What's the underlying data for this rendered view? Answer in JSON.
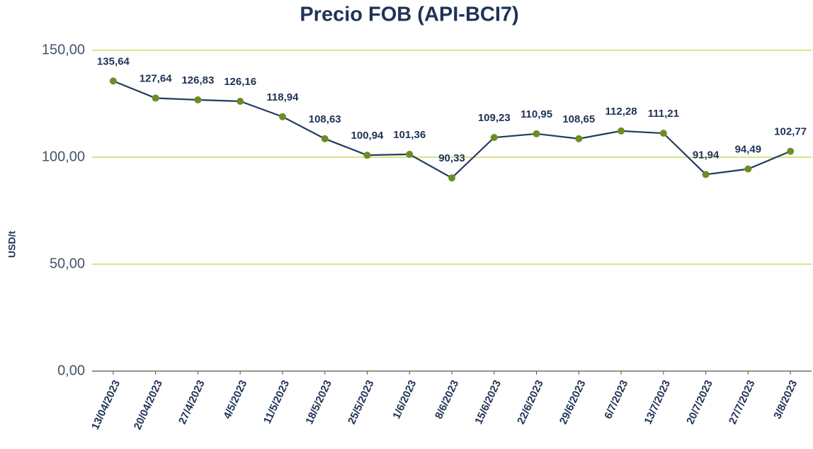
{
  "chart_data": {
    "type": "line",
    "title": "Precio FOB (API-BCI7)",
    "y_label": "USD/t",
    "categories": [
      "13/04/2023",
      "20/04/2023",
      "27/4/2023",
      "4/5/2023",
      "11/5/2023",
      "18/5/2023",
      "25/5/2023",
      "1/6/2023",
      "8/6/2023",
      "15/6/2023",
      "22/6/2023",
      "29/6/2023",
      "6/7/2023",
      "13/7/2023",
      "20/7/2023",
      "27/7/2023",
      "3/8/2023"
    ],
    "series": [
      {
        "name": "Precio FOB",
        "color": "#243a5e",
        "marker_color": "#6b8e23",
        "values": [
          135.64,
          127.64,
          126.83,
          126.16,
          118.94,
          108.63,
          100.94,
          101.36,
          90.33,
          109.23,
          110.95,
          108.65,
          112.28,
          111.21,
          91.94,
          94.49,
          102.77
        ],
        "value_labels": [
          "135,64",
          "127,64",
          "126,83",
          "126,16",
          "118,94",
          "108,63",
          "100,94",
          "101,36",
          "90,33",
          "109,23",
          "110,95",
          "108,65",
          "112,28",
          "111,21",
          "91,94",
          "94,49",
          "102,77"
        ]
      }
    ],
    "ylim": [
      0,
      150
    ],
    "yticks": [
      {
        "value": 0,
        "label": "0,00"
      },
      {
        "value": 50,
        "label": "50,00"
      },
      {
        "value": 100,
        "label": "100,00"
      },
      {
        "value": 150,
        "label": "150,00"
      }
    ],
    "grid": true
  }
}
